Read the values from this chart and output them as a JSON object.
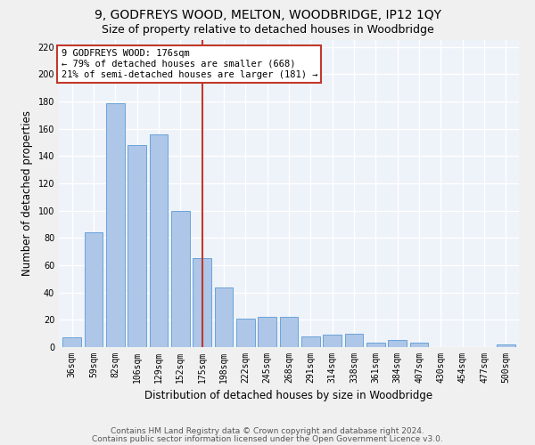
{
  "title": "9, GODFREYS WOOD, MELTON, WOODBRIDGE, IP12 1QY",
  "subtitle": "Size of property relative to detached houses in Woodbridge",
  "xlabel": "Distribution of detached houses by size in Woodbridge",
  "ylabel": "Number of detached properties",
  "categories": [
    "36sqm",
    "59sqm",
    "82sqm",
    "106sqm",
    "129sqm",
    "152sqm",
    "175sqm",
    "198sqm",
    "222sqm",
    "245sqm",
    "268sqm",
    "291sqm",
    "314sqm",
    "338sqm",
    "361sqm",
    "384sqm",
    "407sqm",
    "430sqm",
    "454sqm",
    "477sqm",
    "500sqm"
  ],
  "values": [
    7,
    84,
    179,
    148,
    156,
    100,
    65,
    44,
    21,
    22,
    22,
    8,
    9,
    10,
    3,
    5,
    3,
    0,
    0,
    0,
    2
  ],
  "bar_color": "#aec6e8",
  "bar_edge_color": "#5a9bd5",
  "annotation_line1": "9 GODFREYS WOOD: 176sqm",
  "annotation_line2": "← 79% of detached houses are smaller (668)",
  "annotation_line3": "21% of semi-detached houses are larger (181) →",
  "vline_color": "#c0392b",
  "annotation_box_color": "#ffffff",
  "annotation_box_edge_color": "#c0392b",
  "footer1": "Contains HM Land Registry data © Crown copyright and database right 2024.",
  "footer2": "Contains public sector information licensed under the Open Government Licence v3.0.",
  "ylim": [
    0,
    225
  ],
  "yticks": [
    0,
    20,
    40,
    60,
    80,
    100,
    120,
    140,
    160,
    180,
    200,
    220
  ],
  "bg_color": "#eef2f9",
  "grid_color": "#ffffff",
  "title_fontsize": 10,
  "subtitle_fontsize": 9,
  "axis_label_fontsize": 8.5,
  "tick_fontsize": 7,
  "footer_fontsize": 6.5,
  "annotation_fontsize": 7.5,
  "vline_x": 6
}
